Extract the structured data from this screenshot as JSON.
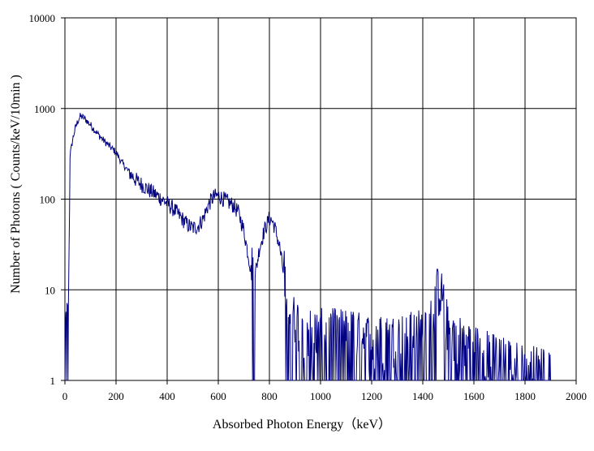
{
  "chart_data": {
    "type": "line",
    "title": "",
    "xlabel": "Absorbed Photon Energy（keV）",
    "ylabel": "Number  of Photons ( Counts/keV/10min  )",
    "xlim": [
      0,
      2000
    ],
    "ylim": [
      1,
      10000
    ],
    "yscale": "log",
    "grid": true,
    "legend": "none",
    "x_ticks": [
      "0",
      "200",
      "400",
      "600",
      "800",
      "1000",
      "1200",
      "1400",
      "1600",
      "1800",
      "2000"
    ],
    "y_ticks": [
      "1",
      "10",
      "100",
      "1000",
      "10000"
    ],
    "series_color": "#000080",
    "series": [
      {
        "x": [
          0,
          5,
          10,
          15,
          20,
          30,
          40,
          50,
          60,
          70,
          80,
          100,
          120,
          140,
          160,
          180,
          200,
          220,
          250,
          280,
          300,
          330,
          360,
          400,
          430,
          460,
          480,
          500,
          520,
          540,
          560,
          580,
          600,
          620,
          640,
          660,
          680,
          700,
          720,
          730,
          740,
          750,
          760,
          780,
          800,
          810,
          820,
          840,
          860,
          880,
          900,
          950,
          1000,
          1100,
          1200,
          1300,
          1400,
          1440,
          1460,
          1480,
          1500,
          1600,
          1700,
          1800,
          1900
        ],
        "y": [
          1,
          5,
          4,
          12,
          300,
          450,
          600,
          720,
          820,
          800,
          760,
          660,
          560,
          480,
          420,
          370,
          330,
          260,
          200,
          160,
          145,
          125,
          110,
          90,
          75,
          60,
          52,
          48,
          50,
          60,
          85,
          105,
          110,
          100,
          92,
          85,
          70,
          45,
          22,
          15,
          14,
          18,
          28,
          45,
          62,
          58,
          50,
          30,
          12,
          5,
          4,
          3,
          3,
          3,
          2.5,
          2.5,
          3,
          6,
          9,
          7,
          3,
          2,
          1.5,
          1.2,
          1.1
        ]
      }
    ]
  }
}
